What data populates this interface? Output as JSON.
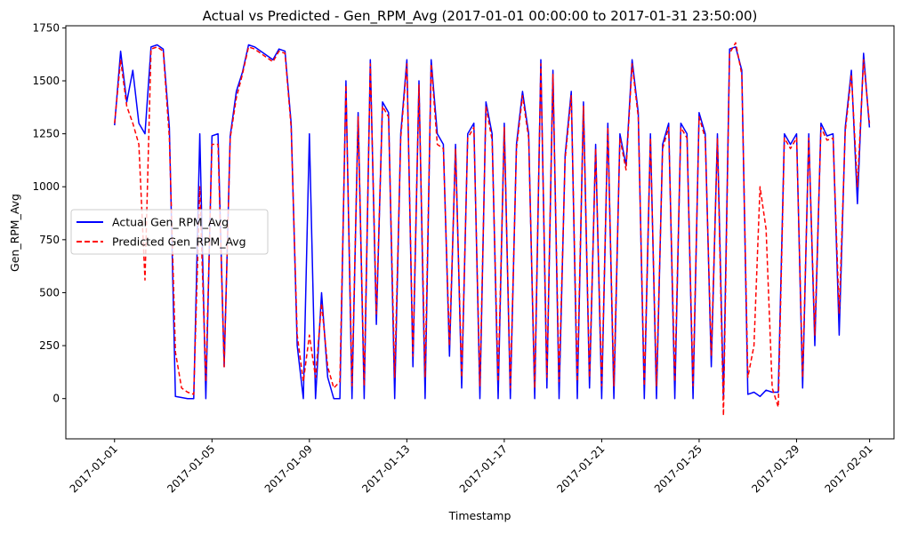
{
  "chart_data": {
    "type": "line",
    "title": "Actual vs Predicted - Gen_RPM_Avg (2017-01-01 00:00:00 to 2017-01-31 23:50:00)",
    "xlabel": "Timestamp",
    "ylabel": "Gen_RPM_Avg",
    "xlim": [
      "2016-12-30",
      "2017-02-02"
    ],
    "ylim": [
      -190,
      1760
    ],
    "x_ticks": [
      "2017-01-01",
      "2017-01-05",
      "2017-01-09",
      "2017-01-13",
      "2017-01-17",
      "2017-01-21",
      "2017-01-25",
      "2017-01-29",
      "2017-02-01"
    ],
    "y_ticks": [
      0,
      250,
      500,
      750,
      1000,
      1250,
      1500,
      1750
    ],
    "legend_position": "center-left",
    "grid": false,
    "series": [
      {
        "name": "Actual Gen_RPM_Avg",
        "color": "#0000ff",
        "style": "solid",
        "x": [
          "2017-01-01",
          "2017-01-01 06:00",
          "2017-01-01 12:00",
          "2017-01-01 18:00",
          "2017-01-02",
          "2017-01-02 06:00",
          "2017-01-02 12:00",
          "2017-01-02 18:00",
          "2017-01-03",
          "2017-01-03 06:00",
          "2017-01-03 12:00",
          "2017-01-03 18:00",
          "2017-01-04",
          "2017-01-04 06:00",
          "2017-01-04 12:00",
          "2017-01-04 18:00",
          "2017-01-05",
          "2017-01-05 06:00",
          "2017-01-05 12:00",
          "2017-01-05 18:00",
          "2017-01-06",
          "2017-01-06 06:00",
          "2017-01-06 12:00",
          "2017-01-06 18:00",
          "2017-01-07",
          "2017-01-07 06:00",
          "2017-01-07 12:00",
          "2017-01-07 18:00",
          "2017-01-08",
          "2017-01-08 06:00",
          "2017-01-08 12:00",
          "2017-01-08 18:00",
          "2017-01-09",
          "2017-01-09 06:00",
          "2017-01-09 12:00",
          "2017-01-09 18:00",
          "2017-01-10",
          "2017-01-10 06:00",
          "2017-01-10 12:00",
          "2017-01-10 18:00",
          "2017-01-11",
          "2017-01-11 06:00",
          "2017-01-11 12:00",
          "2017-01-11 18:00",
          "2017-01-12",
          "2017-01-12 06:00",
          "2017-01-12 12:00",
          "2017-01-12 18:00",
          "2017-01-13",
          "2017-01-13 06:00",
          "2017-01-13 12:00",
          "2017-01-13 18:00",
          "2017-01-14",
          "2017-01-14 06:00",
          "2017-01-14 12:00",
          "2017-01-14 18:00",
          "2017-01-15",
          "2017-01-15 06:00",
          "2017-01-15 12:00",
          "2017-01-15 18:00",
          "2017-01-16",
          "2017-01-16 06:00",
          "2017-01-16 12:00",
          "2017-01-16 18:00",
          "2017-01-17",
          "2017-01-17 06:00",
          "2017-01-17 12:00",
          "2017-01-17 18:00",
          "2017-01-18",
          "2017-01-18 06:00",
          "2017-01-18 12:00",
          "2017-01-18 18:00",
          "2017-01-19",
          "2017-01-19 06:00",
          "2017-01-19 12:00",
          "2017-01-19 18:00",
          "2017-01-20",
          "2017-01-20 06:00",
          "2017-01-20 12:00",
          "2017-01-20 18:00",
          "2017-01-21",
          "2017-01-21 06:00",
          "2017-01-21 12:00",
          "2017-01-21 18:00",
          "2017-01-22",
          "2017-01-22 06:00",
          "2017-01-22 12:00",
          "2017-01-22 18:00",
          "2017-01-23",
          "2017-01-23 06:00",
          "2017-01-23 12:00",
          "2017-01-23 18:00",
          "2017-01-24",
          "2017-01-24 06:00",
          "2017-01-24 12:00",
          "2017-01-24 18:00",
          "2017-01-25",
          "2017-01-25 06:00",
          "2017-01-25 12:00",
          "2017-01-25 18:00",
          "2017-01-26",
          "2017-01-26 06:00",
          "2017-01-26 12:00",
          "2017-01-26 18:00",
          "2017-01-27",
          "2017-01-27 06:00",
          "2017-01-27 12:00",
          "2017-01-27 18:00",
          "2017-01-28",
          "2017-01-28 06:00",
          "2017-01-28 12:00",
          "2017-01-28 18:00",
          "2017-01-29",
          "2017-01-29 06:00",
          "2017-01-29 12:00",
          "2017-01-29 18:00",
          "2017-01-30",
          "2017-01-30 06:00",
          "2017-01-30 12:00",
          "2017-01-30 18:00",
          "2017-01-31",
          "2017-01-31 06:00",
          "2017-01-31 12:00",
          "2017-01-31 18:00",
          "2017-01-31 23:50"
        ],
        "y": [
          1290,
          1640,
          1400,
          1550,
          1300,
          1250,
          1660,
          1670,
          1650,
          1280,
          10,
          5,
          0,
          0,
          1250,
          0,
          1240,
          1250,
          150,
          1240,
          1450,
          1540,
          1670,
          1660,
          1640,
          1620,
          1600,
          1650,
          1640,
          1300,
          250,
          0,
          1250,
          0,
          500,
          100,
          0,
          0,
          1500,
          0,
          1350,
          0,
          1600,
          350,
          1400,
          1350,
          0,
          1250,
          1600,
          150,
          1500,
          0,
          1600,
          1250,
          1200,
          200,
          1200,
          50,
          1250,
          1300,
          0,
          1400,
          1250,
          0,
          1300,
          0,
          1200,
          1450,
          1250,
          0,
          1600,
          50,
          1550,
          0,
          1150,
          1450,
          0,
          1400,
          50,
          1200,
          0,
          1300,
          0,
          1250,
          1100,
          1600,
          1350,
          0,
          1250,
          0,
          1200,
          1300,
          0,
          1300,
          1250,
          0,
          1350,
          1250,
          150,
          1250,
          0,
          1650,
          1660,
          1550,
          20,
          30,
          10,
          40,
          30,
          30,
          1250,
          1200,
          1250,
          50,
          1250,
          250,
          1300,
          1240,
          1250,
          300,
          1280,
          1550,
          920,
          1630,
          1280
        ]
      },
      {
        "name": "Predicted Gen_RPM_Avg",
        "color": "#ff0000",
        "style": "dashed",
        "x": [
          "2017-01-01",
          "2017-01-01 06:00",
          "2017-01-01 12:00",
          "2017-01-01 18:00",
          "2017-01-02",
          "2017-01-02 06:00",
          "2017-01-02 12:00",
          "2017-01-02 18:00",
          "2017-01-03",
          "2017-01-03 06:00",
          "2017-01-03 12:00",
          "2017-01-03 18:00",
          "2017-01-04",
          "2017-01-04 06:00",
          "2017-01-04 12:00",
          "2017-01-04 18:00",
          "2017-01-05",
          "2017-01-05 06:00",
          "2017-01-05 12:00",
          "2017-01-05 18:00",
          "2017-01-06",
          "2017-01-06 06:00",
          "2017-01-06 12:00",
          "2017-01-06 18:00",
          "2017-01-07",
          "2017-01-07 06:00",
          "2017-01-07 12:00",
          "2017-01-07 18:00",
          "2017-01-08",
          "2017-01-08 06:00",
          "2017-01-08 12:00",
          "2017-01-08 18:00",
          "2017-01-09",
          "2017-01-09 06:00",
          "2017-01-09 12:00",
          "2017-01-09 18:00",
          "2017-01-10",
          "2017-01-10 06:00",
          "2017-01-10 12:00",
          "2017-01-10 18:00",
          "2017-01-11",
          "2017-01-11 06:00",
          "2017-01-11 12:00",
          "2017-01-11 18:00",
          "2017-01-12",
          "2017-01-12 06:00",
          "2017-01-12 12:00",
          "2017-01-12 18:00",
          "2017-01-13",
          "2017-01-13 06:00",
          "2017-01-13 12:00",
          "2017-01-13 18:00",
          "2017-01-14",
          "2017-01-14 06:00",
          "2017-01-14 12:00",
          "2017-01-14 18:00",
          "2017-01-15",
          "2017-01-15 06:00",
          "2017-01-15 12:00",
          "2017-01-15 18:00",
          "2017-01-16",
          "2017-01-16 06:00",
          "2017-01-16 12:00",
          "2017-01-16 18:00",
          "2017-01-17",
          "2017-01-17 06:00",
          "2017-01-17 12:00",
          "2017-01-17 18:00",
          "2017-01-18",
          "2017-01-18 06:00",
          "2017-01-18 12:00",
          "2017-01-18 18:00",
          "2017-01-19",
          "2017-01-19 06:00",
          "2017-01-19 12:00",
          "2017-01-19 18:00",
          "2017-01-20",
          "2017-01-20 06:00",
          "2017-01-20 12:00",
          "2017-01-20 18:00",
          "2017-01-21",
          "2017-01-21 06:00",
          "2017-01-21 12:00",
          "2017-01-21 18:00",
          "2017-01-22",
          "2017-01-22 06:00",
          "2017-01-22 12:00",
          "2017-01-22 18:00",
          "2017-01-23",
          "2017-01-23 06:00",
          "2017-01-23 12:00",
          "2017-01-23 18:00",
          "2017-01-24",
          "2017-01-24 06:00",
          "2017-01-24 12:00",
          "2017-01-24 18:00",
          "2017-01-25",
          "2017-01-25 06:00",
          "2017-01-25 12:00",
          "2017-01-25 18:00",
          "2017-01-26",
          "2017-01-26 06:00",
          "2017-01-26 12:00",
          "2017-01-26 18:00",
          "2017-01-27",
          "2017-01-27 06:00",
          "2017-01-27 12:00",
          "2017-01-27 18:00",
          "2017-01-28",
          "2017-01-28 06:00",
          "2017-01-28 12:00",
          "2017-01-28 18:00",
          "2017-01-29",
          "2017-01-29 06:00",
          "2017-01-29 12:00",
          "2017-01-29 18:00",
          "2017-01-30",
          "2017-01-30 06:00",
          "2017-01-30 12:00",
          "2017-01-30 18:00",
          "2017-01-31",
          "2017-01-31 06:00",
          "2017-01-31 12:00",
          "2017-01-31 18:00",
          "2017-01-31 23:50"
        ],
        "y": [
          1300,
          1600,
          1380,
          1300,
          1200,
          560,
          1650,
          1660,
          1640,
          1230,
          220,
          50,
          30,
          20,
          1000,
          80,
          1200,
          1200,
          150,
          1230,
          1420,
          1530,
          1660,
          1650,
          1630,
          1610,
          1590,
          1640,
          1630,
          1280,
          300,
          80,
          300,
          100,
          450,
          150,
          50,
          80,
          1480,
          60,
          1330,
          60,
          1580,
          400,
          1380,
          1330,
          100,
          1230,
          1580,
          200,
          1480,
          100,
          1580,
          1200,
          1180,
          250,
          1180,
          100,
          1230,
          1280,
          60,
          1380,
          1220,
          80,
          1280,
          50,
          1180,
          1430,
          1230,
          50,
          1580,
          100,
          1530,
          80,
          1130,
          1430,
          80,
          1380,
          100,
          1180,
          60,
          1280,
          60,
          1230,
          1080,
          1580,
          1330,
          60,
          1230,
          60,
          1180,
          1280,
          80,
          1280,
          1230,
          60,
          1330,
          1230,
          200,
          1230,
          -80,
          1630,
          1680,
          1530,
          100,
          250,
          1000,
          800,
          50,
          -40,
          1230,
          1180,
          1230,
          100,
          1230,
          300,
          1280,
          1220,
          1230,
          400,
          1260,
          1530,
          1000,
          1600,
          1300
        ]
      }
    ]
  }
}
